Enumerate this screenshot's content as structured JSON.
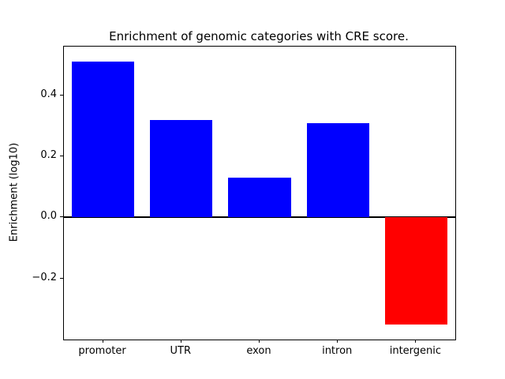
{
  "chart_data": {
    "type": "bar",
    "title": "Enrichment of genomic categories with CRE score.",
    "ylabel": "Enrichment (log10)",
    "xlabel": "",
    "categories": [
      "promoter",
      "UTR",
      "exon",
      "intron",
      "intergenic"
    ],
    "values": [
      0.51,
      0.32,
      0.13,
      0.31,
      -0.35
    ],
    "positive_color": "#0000ff",
    "negative_color": "#ff0000",
    "ylim": [
      -0.4,
      0.56
    ],
    "yticks": [
      -0.2,
      0.0,
      0.2,
      0.4
    ],
    "ytick_labels": [
      "−0.2",
      "0.0",
      "0.2",
      "0.4"
    ],
    "grid": false,
    "legend": "none",
    "zero_line": true
  }
}
